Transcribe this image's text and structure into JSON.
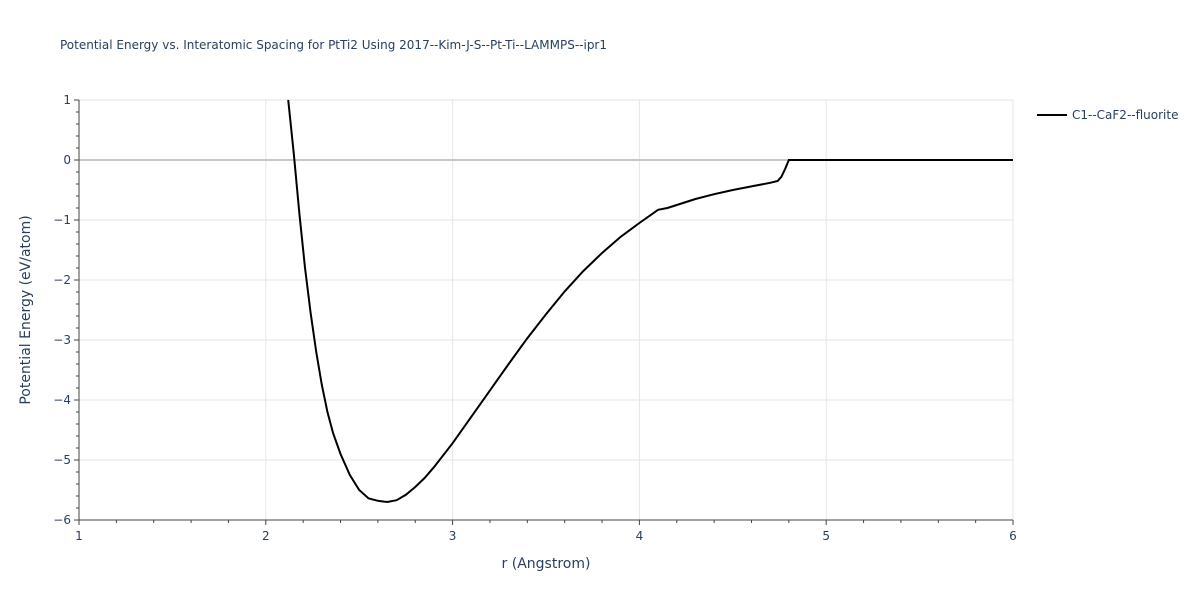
{
  "chart_data": {
    "type": "line",
    "title": "Potential Energy vs. Interatomic Spacing for PtTi2 Using 2017--Kim-J-S--Pt-Ti--LAMMPS--ipr1",
    "xlabel": "r (Angstrom)",
    "ylabel": "Potential Energy (eV/atom)",
    "xlim": [
      1,
      6
    ],
    "ylim": [
      -6,
      1
    ],
    "xticks": [
      1,
      2,
      3,
      4,
      5,
      6
    ],
    "yticks": [
      1,
      0,
      -1,
      -2,
      -3,
      -4,
      -5,
      -6
    ],
    "ytick_labels": [
      "1",
      "0",
      "−1",
      "−2",
      "−3",
      "−4",
      "−5",
      "−6"
    ],
    "grid": true,
    "legend_position": "top-right",
    "line_color": "#000000",
    "series": [
      {
        "name": "C1--CaF2--fluorite",
        "x": [
          2.12,
          2.15,
          2.18,
          2.21,
          2.24,
          2.27,
          2.3,
          2.33,
          2.36,
          2.4,
          2.45,
          2.5,
          2.55,
          2.6,
          2.65,
          2.7,
          2.75,
          2.8,
          2.85,
          2.9,
          3.0,
          3.1,
          3.2,
          3.3,
          3.4,
          3.5,
          3.6,
          3.7,
          3.8,
          3.9,
          4.0,
          4.1,
          4.15,
          4.2,
          4.3,
          4.4,
          4.5,
          4.6,
          4.7,
          4.74,
          4.76,
          4.78,
          4.8,
          5.0,
          5.5,
          6.0
        ],
        "y": [
          1.0,
          0.1,
          -0.9,
          -1.8,
          -2.55,
          -3.2,
          -3.75,
          -4.2,
          -4.55,
          -4.9,
          -5.25,
          -5.5,
          -5.64,
          -5.68,
          -5.7,
          -5.67,
          -5.58,
          -5.45,
          -5.3,
          -5.12,
          -4.72,
          -4.28,
          -3.84,
          -3.4,
          -2.97,
          -2.57,
          -2.19,
          -1.85,
          -1.55,
          -1.28,
          -1.05,
          -0.83,
          -0.8,
          -0.75,
          -0.65,
          -0.57,
          -0.5,
          -0.44,
          -0.38,
          -0.35,
          -0.28,
          -0.15,
          0.0,
          0.0,
          0.0,
          0.0
        ]
      }
    ]
  }
}
